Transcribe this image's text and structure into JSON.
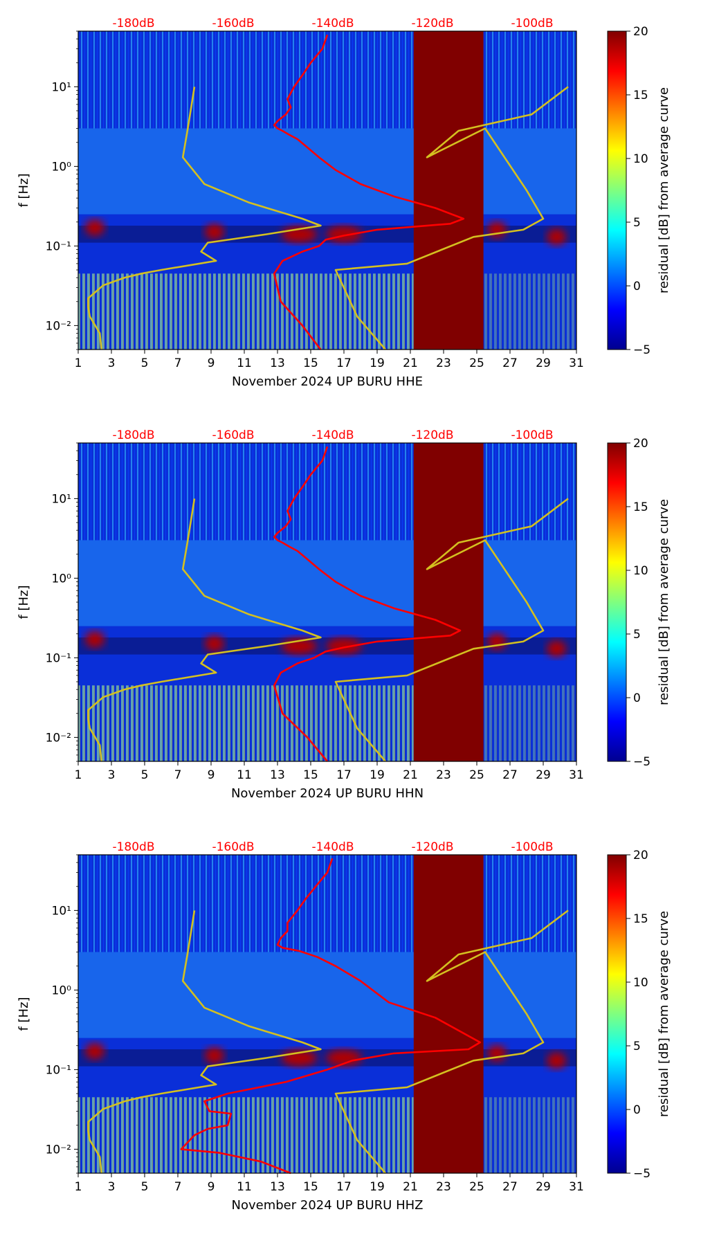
{
  "chart_data": [
    {
      "type": "heatmap",
      "title": "",
      "xlabel": "November 2024 UP BURU  HHE",
      "ylabel": "f [Hz]",
      "x_ticks": [
        "1",
        "3",
        "5",
        "7",
        "9",
        "11",
        "13",
        "15",
        "17",
        "19",
        "21",
        "23",
        "25",
        "27",
        "29",
        "31"
      ],
      "y_ticks": [
        "10⁻²",
        "10⁻¹",
        "10⁰",
        "10¹"
      ],
      "xlim": [
        1,
        31
      ],
      "ylim": [
        0.005,
        50
      ],
      "db_scale": [
        "-180dB",
        "-160dB",
        "-140dB",
        "-120dB",
        "-100dB"
      ],
      "colorbar": {
        "label": "residual [dB] from average curve",
        "range": [
          -5,
          20
        ],
        "ticks": [
          "−5",
          "0",
          "5",
          "10",
          "15",
          "20"
        ]
      },
      "gap": {
        "start_day": 21.2,
        "end_day": 25.4,
        "color": "#800000"
      },
      "series": [
        {
          "name": "yellow-curve-left",
          "color": "#d4c020",
          "x": [
            8.0,
            7.6,
            7.3,
            8.6,
            11.3,
            14.5,
            15.6,
            12.3,
            8.8,
            8.4,
            9.3,
            6.0,
            4.8,
            3.8,
            2.5,
            1.6,
            1.6,
            1.7,
            2.3,
            2.4
          ],
          "y": [
            10,
            3,
            1.3,
            0.6,
            0.35,
            0.22,
            0.18,
            0.14,
            0.11,
            0.085,
            0.065,
            0.05,
            0.045,
            0.04,
            0.032,
            0.022,
            0.017,
            0.013,
            0.008,
            0.005
          ]
        },
        {
          "name": "yellow-curve-right",
          "color": "#d4c020",
          "x": [
            19.5,
            17.8,
            16.5,
            20.8,
            24.8,
            27.8,
            29.0,
            28.0,
            25.5,
            22.0,
            23.9,
            28.3,
            30.5
          ],
          "y": [
            0.005,
            0.013,
            0.05,
            0.06,
            0.13,
            0.16,
            0.22,
            0.5,
            3,
            1.3,
            2.8,
            4.5,
            10
          ]
        },
        {
          "name": "red-curve",
          "color": "#ff0000",
          "x": [
            16.0,
            15.7,
            15.0,
            14.5,
            14.0,
            13.6,
            13.8,
            13.5,
            13.0,
            12.8,
            13.0,
            13.3,
            13.7,
            14.2,
            14.7,
            15.5,
            16.5,
            18.0,
            20.0,
            22.5,
            24.2,
            23.4,
            19.0,
            17.0,
            15.9,
            15.5,
            14.5,
            13.3,
            12.8,
            13.2,
            14.5,
            15.6
          ],
          "y": [
            45,
            30,
            20,
            14,
            10,
            7,
            5.5,
            4.5,
            3.7,
            3.3,
            3,
            2.8,
            2.5,
            2.2,
            1.8,
            1.3,
            0.9,
            0.6,
            0.42,
            0.3,
            0.22,
            0.19,
            0.16,
            0.135,
            0.12,
            0.1,
            0.085,
            0.065,
            0.045,
            0.02,
            0.01,
            0.005
          ]
        }
      ]
    },
    {
      "type": "heatmap",
      "title": "",
      "xlabel": "November 2024 UP BURU  HHN",
      "ylabel": "f [Hz]",
      "x_ticks": [
        "1",
        "3",
        "5",
        "7",
        "9",
        "11",
        "13",
        "15",
        "17",
        "19",
        "21",
        "23",
        "25",
        "27",
        "29",
        "31"
      ],
      "y_ticks": [
        "10⁻²",
        "10⁻¹",
        "10⁰",
        "10¹"
      ],
      "xlim": [
        1,
        31
      ],
      "ylim": [
        0.005,
        50
      ],
      "db_scale": [
        "-180dB",
        "-160dB",
        "-140dB",
        "-120dB",
        "-100dB"
      ],
      "colorbar": {
        "label": "residual [dB] from average curve",
        "range": [
          -5,
          20
        ],
        "ticks": [
          "−5",
          "0",
          "5",
          "10",
          "15",
          "20"
        ]
      },
      "gap": {
        "start_day": 21.2,
        "end_day": 25.4,
        "color": "#800000"
      },
      "series": [
        {
          "name": "yellow-curve-left",
          "color": "#d4c020",
          "x": [
            8.0,
            7.6,
            7.3,
            8.6,
            11.3,
            14.5,
            15.6,
            12.3,
            8.8,
            8.4,
            9.3,
            6.0,
            4.8,
            3.8,
            2.5,
            1.6,
            1.6,
            1.7,
            2.3,
            2.4
          ],
          "y": [
            10,
            3,
            1.3,
            0.6,
            0.35,
            0.22,
            0.18,
            0.14,
            0.11,
            0.085,
            0.065,
            0.05,
            0.045,
            0.04,
            0.032,
            0.022,
            0.017,
            0.013,
            0.008,
            0.005
          ]
        },
        {
          "name": "yellow-curve-right",
          "color": "#d4c020",
          "x": [
            19.5,
            17.8,
            16.5,
            20.8,
            24.8,
            27.8,
            29.0,
            28.0,
            25.5,
            22.0,
            23.9,
            28.3,
            30.5
          ],
          "y": [
            0.005,
            0.013,
            0.05,
            0.06,
            0.13,
            0.16,
            0.22,
            0.5,
            3,
            1.3,
            2.8,
            4.5,
            10
          ]
        },
        {
          "name": "red-curve",
          "color": "#ff0000",
          "x": [
            16.0,
            15.7,
            15.0,
            14.5,
            14.0,
            13.6,
            13.8,
            13.5,
            13.0,
            12.8,
            13.0,
            13.3,
            13.7,
            14.2,
            14.7,
            15.5,
            16.5,
            18.0,
            20.0,
            22.5,
            24.0,
            23.4,
            19.0,
            17.0,
            15.9,
            15.2,
            14.2,
            13.2,
            12.8,
            13.3,
            14.8,
            16.0
          ],
          "y": [
            45,
            30,
            20,
            14,
            10,
            7,
            5.5,
            4.5,
            3.7,
            3.3,
            3,
            2.8,
            2.5,
            2.2,
            1.8,
            1.3,
            0.9,
            0.6,
            0.42,
            0.3,
            0.22,
            0.19,
            0.16,
            0.135,
            0.12,
            0.1,
            0.085,
            0.065,
            0.045,
            0.02,
            0.01,
            0.005
          ]
        }
      ]
    },
    {
      "type": "heatmap",
      "title": "",
      "xlabel": "November 2024 UP BURU  HHZ",
      "ylabel": "f [Hz]",
      "x_ticks": [
        "1",
        "3",
        "5",
        "7",
        "9",
        "11",
        "13",
        "15",
        "17",
        "19",
        "21",
        "23",
        "25",
        "27",
        "29",
        "31"
      ],
      "y_ticks": [
        "10⁻²",
        "10⁻¹",
        "10⁰",
        "10¹"
      ],
      "xlim": [
        1,
        31
      ],
      "ylim": [
        0.005,
        50
      ],
      "db_scale": [
        "-180dB",
        "-160dB",
        "-140dB",
        "-120dB",
        "-100dB"
      ],
      "colorbar": {
        "label": "residual [dB] from average curve",
        "range": [
          -5,
          20
        ],
        "ticks": [
          "−5",
          "0",
          "5",
          "10",
          "15",
          "20"
        ]
      },
      "gap": {
        "start_day": 21.2,
        "end_day": 25.4,
        "color": "#800000"
      },
      "series": [
        {
          "name": "yellow-curve-left",
          "color": "#d4c020",
          "x": [
            8.0,
            7.6,
            7.3,
            8.6,
            11.3,
            14.5,
            15.6,
            12.3,
            8.8,
            8.4,
            9.3,
            6.0,
            4.8,
            3.8,
            2.5,
            1.6,
            1.6,
            1.7,
            2.3,
            2.4
          ],
          "y": [
            10,
            3,
            1.3,
            0.6,
            0.35,
            0.22,
            0.18,
            0.14,
            0.11,
            0.085,
            0.065,
            0.05,
            0.045,
            0.04,
            0.032,
            0.022,
            0.017,
            0.013,
            0.008,
            0.005
          ]
        },
        {
          "name": "yellow-curve-right",
          "color": "#d4c020",
          "x": [
            19.5,
            17.8,
            16.5,
            20.8,
            24.8,
            27.8,
            29.0,
            28.0,
            25.5,
            22.0,
            23.9,
            28.3,
            30.5
          ],
          "y": [
            0.005,
            0.013,
            0.05,
            0.06,
            0.13,
            0.16,
            0.22,
            0.5,
            3,
            1.3,
            2.8,
            4.5,
            10
          ]
        },
        {
          "name": "red-curve",
          "color": "#ff0000",
          "x": [
            16.3,
            16.0,
            15.3,
            14.7,
            14.2,
            13.6,
            13.6,
            13.2,
            13.0,
            13.3,
            14.3,
            15.4,
            16.5,
            18.0,
            19.7,
            22.5,
            25.2,
            24.5,
            20.0,
            17.5,
            16.0,
            13.5,
            10.0,
            8.6,
            8.9,
            10.2,
            10.0,
            8.8,
            8.0,
            7.2,
            9.5,
            12.0,
            13.8
          ],
          "y": [
            45,
            30,
            20,
            14,
            10,
            7,
            5.5,
            4.5,
            3.7,
            3.4,
            3.1,
            2.6,
            2,
            1.3,
            0.7,
            0.45,
            0.22,
            0.18,
            0.16,
            0.13,
            0.1,
            0.07,
            0.05,
            0.04,
            0.03,
            0.028,
            0.02,
            0.018,
            0.015,
            0.01,
            0.009,
            0.007,
            0.005
          ]
        }
      ]
    }
  ]
}
